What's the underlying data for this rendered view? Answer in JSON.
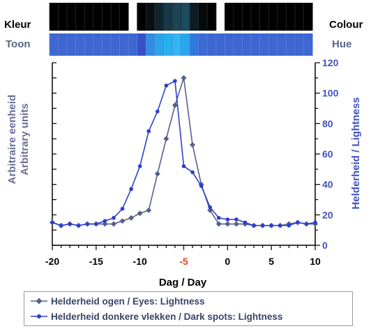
{
  "strips": {
    "colour_label_left": "Kleur",
    "colour_label_right": "Colour",
    "hue_label_left": "Toon",
    "hue_label_right": "Hue"
  },
  "colors": {
    "eyes": "#55608a",
    "dark_spots": "#2d3fcc",
    "hue_base": "#3f67d2",
    "colour_base": "#000000",
    "highlight_tick": "#e8401a"
  },
  "chart_data": {
    "type": "line",
    "xlabel": "Dag  /  Day",
    "ylabel_left": [
      "Arbitraire eenheid",
      "Arbitrary units"
    ],
    "ylabel_right": "Helderheid  /  Lightness",
    "xlim": [
      -20,
      10
    ],
    "ylim": [
      0,
      120
    ],
    "x_ticks": [
      -20,
      -15,
      -10,
      -5,
      0,
      5,
      10
    ],
    "x_tick_labels": [
      "-20",
      "-15",
      "-10",
      "-5",
      "0",
      "5",
      "10"
    ],
    "highlight_x_tick": "-5",
    "y_ticks": [
      0,
      20,
      40,
      60,
      80,
      100,
      120
    ],
    "y_tick_labels": [
      "0",
      "20",
      "40",
      "60",
      "80",
      "100",
      "120"
    ],
    "grid": false,
    "legend_position": "bottom",
    "series": [
      {
        "name": "Helderheid ogen  /  Eyes: Lightness",
        "marker": "diamond",
        "x": [
          -20,
          -19,
          -18,
          -17,
          -16,
          -15,
          -14,
          -13,
          -12,
          -11,
          -10,
          -9,
          -8,
          -7,
          -6,
          -5,
          -4,
          -3,
          -2,
          -1,
          0,
          1,
          2,
          3,
          4,
          5,
          6,
          7,
          8,
          9,
          10
        ],
        "values": [
          15,
          13,
          14,
          13,
          14,
          14,
          14,
          14,
          16,
          18,
          21,
          23,
          47,
          70,
          92,
          110,
          66,
          40,
          23,
          14,
          14,
          14,
          14,
          13,
          13,
          13,
          13,
          14,
          15,
          14,
          14
        ]
      },
      {
        "name": "Helderheid donkere vlekken  /  Dark spots: Lightness",
        "marker": "dot",
        "x": [
          -20,
          -19,
          -18,
          -17,
          -16,
          -15,
          -14,
          -13,
          -12,
          -11,
          -10,
          -9,
          -8,
          -7,
          -6,
          -5,
          -4,
          -3,
          -2,
          -1,
          0,
          1,
          2,
          3,
          4,
          5,
          6,
          7,
          8,
          9,
          10
        ],
        "values": [
          15,
          13,
          14,
          13,
          14,
          14,
          16,
          18,
          24,
          37,
          52,
          75,
          88,
          105,
          108,
          52,
          48,
          39,
          25,
          18,
          17,
          17,
          15,
          13,
          13,
          13,
          13,
          13,
          15,
          14,
          15
        ]
      }
    ]
  }
}
